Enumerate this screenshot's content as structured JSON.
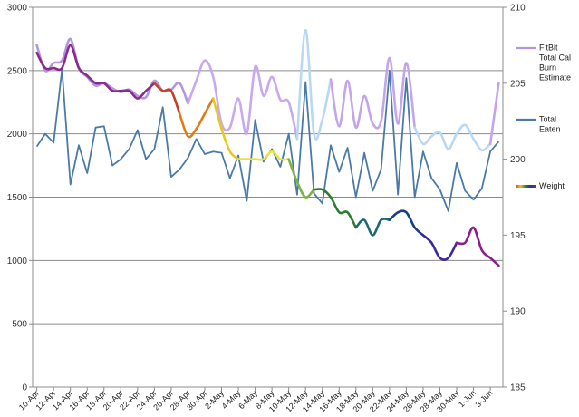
{
  "chart_data": {
    "type": "line",
    "title": "",
    "xlabel": "",
    "ylabel": "",
    "y2label": "",
    "ylim": [
      0,
      3000
    ],
    "y2lim": [
      185,
      210
    ],
    "yticks": [
      "0",
      "500",
      "1000",
      "1500",
      "2000",
      "2500",
      "3000"
    ],
    "y2ticks": [
      "185",
      "190",
      "195",
      "200",
      "205",
      "210"
    ],
    "grid": "horizontal",
    "legend_position": "right",
    "xtick_labels": [
      "10-Apr",
      "12-Apr",
      "14-Apr",
      "16-Apr",
      "18-Apr",
      "20-Apr",
      "22-Apr",
      "24-Apr",
      "26-Apr",
      "28-Apr",
      "30-Apr",
      "2-May",
      "4-May",
      "6-May",
      "8-May",
      "10-May",
      "12-May",
      "14-May",
      "16-May",
      "18-May",
      "20-May",
      "22-May",
      "24-May",
      "26-May",
      "28-May",
      "30-May",
      "1-Jun",
      "3-Jun"
    ],
    "dates": [
      "10-Apr",
      "11-Apr",
      "12-Apr",
      "13-Apr",
      "14-Apr",
      "15-Apr",
      "16-Apr",
      "17-Apr",
      "18-Apr",
      "19-Apr",
      "20-Apr",
      "21-Apr",
      "22-Apr",
      "23-Apr",
      "24-Apr",
      "25-Apr",
      "26-Apr",
      "27-Apr",
      "28-Apr",
      "29-Apr",
      "30-Apr",
      "1-May",
      "2-May",
      "3-May",
      "4-May",
      "5-May",
      "6-May",
      "7-May",
      "8-May",
      "9-May",
      "10-May",
      "11-May",
      "12-May",
      "13-May",
      "14-May",
      "15-May",
      "16-May",
      "17-May",
      "18-May",
      "19-May",
      "20-May",
      "21-May",
      "22-May",
      "23-May",
      "24-May",
      "25-May",
      "26-May",
      "27-May",
      "28-May",
      "29-May",
      "30-May",
      "31-May",
      "1-Jun",
      "2-Jun",
      "3-Jun",
      "4-Jun"
    ],
    "series": [
      {
        "name": "FitBit Total Cal Burn Estimate",
        "axis": "left",
        "color": "#b395e3",
        "values": [
          2700,
          2500,
          2560,
          2580,
          2750,
          2520,
          2450,
          2380,
          2400,
          2360,
          2330,
          2350,
          2300,
          2290,
          2420,
          2340,
          2350,
          2400,
          2240,
          2420,
          2580,
          2450,
          2080,
          2050,
          2280,
          2000,
          2530,
          2300,
          2450,
          2270,
          2250,
          1960,
          2820,
          2000,
          2110,
          2430,
          2060,
          2420,
          2050,
          2300,
          2080,
          2100,
          2600,
          2080,
          2560,
          2050,
          1920,
          1980,
          2010,
          1880,
          2000,
          2070,
          1960,
          1870,
          1920,
          2400
        ],
        "segment_colors": [
          {
            "from": 0,
            "to": 18,
            "color": "#b395e3"
          },
          {
            "from": 18,
            "to": 31,
            "color": "#c9a8ee"
          },
          {
            "from": 31,
            "to": 35,
            "color": "#b9d8f1"
          },
          {
            "from": 35,
            "to": 45,
            "color": "#c4a4ec"
          },
          {
            "from": 45,
            "to": 54,
            "color": "#b9d8f1"
          },
          {
            "from": 54,
            "to": 55,
            "color": "#c4a4ec"
          }
        ]
      },
      {
        "name": "Total Eaten",
        "axis": "left",
        "color": "#4a7aa8",
        "values": [
          1900,
          2000,
          1930,
          2510,
          1600,
          1910,
          1690,
          2050,
          2060,
          1750,
          1800,
          1880,
          2030,
          1800,
          1880,
          2210,
          1660,
          1720,
          1810,
          1960,
          1840,
          1860,
          1850,
          1650,
          1830,
          1470,
          2110,
          1780,
          1880,
          1740,
          2000,
          1520,
          2410,
          1530,
          1450,
          1910,
          1700,
          1890,
          1500,
          1850,
          1550,
          1720,
          2500,
          1520,
          2440,
          1500,
          1860,
          1650,
          1560,
          1390,
          1770,
          1550,
          1480,
          1570,
          1860,
          1940
        ]
      },
      {
        "name": "Weight",
        "axis": "right",
        "values": [
          207,
          206,
          206,
          206,
          207.5,
          206,
          205.5,
          205,
          205,
          204.5,
          204.5,
          204.5,
          204,
          204.5,
          205,
          204.5,
          204.5,
          203,
          201.5,
          202,
          203,
          204,
          202,
          200.5,
          200,
          200,
          200,
          200,
          200.5,
          200,
          200,
          198.5,
          197.5,
          198,
          198,
          197.5,
          196.5,
          196.5,
          195.5,
          196,
          195,
          196,
          196,
          196.5,
          196.5,
          195.5,
          195,
          194.5,
          193.5,
          193.5,
          194.5,
          194.5,
          195.5,
          194,
          193.5,
          193
        ],
        "segment_colors": [
          {
            "from": 0,
            "to": 14,
            "color": "#8b2a8b"
          },
          {
            "from": 14,
            "to": 17,
            "color": "#c2412b"
          },
          {
            "from": 17,
            "to": 21,
            "color": "#e07b1a"
          },
          {
            "from": 21,
            "to": 24,
            "color": "#e8c81e"
          },
          {
            "from": 24,
            "to": 30,
            "color": "#e9e33a"
          },
          {
            "from": 30,
            "to": 33,
            "color": "#7cb342"
          },
          {
            "from": 33,
            "to": 38,
            "color": "#2e7d32"
          },
          {
            "from": 38,
            "to": 42,
            "color": "#1e6a72"
          },
          {
            "from": 42,
            "to": 46,
            "color": "#1b3e8c"
          },
          {
            "from": 46,
            "to": 50,
            "color": "#3a2a9c"
          },
          {
            "from": 50,
            "to": 55,
            "color": "#8a1e8a"
          }
        ]
      }
    ],
    "legend": [
      {
        "lines": [
          "FitBit",
          "Total Cal",
          "Burn",
          "Estimate"
        ],
        "color": "#b395e3",
        "gradient": false
      },
      {
        "lines": [
          "Total",
          "Eaten"
        ],
        "color": "#4a7aa8",
        "gradient": false
      },
      {
        "lines": [
          "Weight"
        ],
        "color": "#c2412b",
        "gradient": true,
        "gradient_colors": [
          "#c2412b",
          "#e8c81e",
          "#2e7d32",
          "#1b3e8c",
          "#8a1e8a"
        ]
      }
    ]
  }
}
